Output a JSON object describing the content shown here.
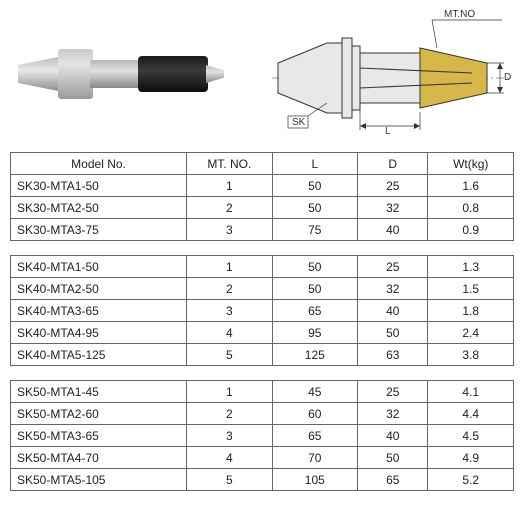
{
  "diagram": {
    "labels": {
      "mtno": "MT.NO",
      "sk": "SK",
      "L": "L",
      "D": "D"
    },
    "colors": {
      "outline": "#333333",
      "fill_section": "#d6b84a",
      "fill_body": "#e8e8e8"
    }
  },
  "headers": {
    "model": "Model No.",
    "mt": "MT. NO.",
    "l": "L",
    "d": "D",
    "wt": "Wt(kg)"
  },
  "groups": [
    {
      "rows": [
        {
          "model": "SK30-MTA1-50",
          "mt": "1",
          "l": "50",
          "d": "25",
          "wt": "1.6"
        },
        {
          "model": "SK30-MTA2-50",
          "mt": "2",
          "l": "50",
          "d": "32",
          "wt": "0.8"
        },
        {
          "model": "SK30-MTA3-75",
          "mt": "3",
          "l": "75",
          "d": "40",
          "wt": "0.9"
        }
      ]
    },
    {
      "rows": [
        {
          "model": "SK40-MTA1-50",
          "mt": "1",
          "l": "50",
          "d": "25",
          "wt": "1.3"
        },
        {
          "model": "SK40-MTA2-50",
          "mt": "2",
          "l": "50",
          "d": "32",
          "wt": "1.5"
        },
        {
          "model": "SK40-MTA3-65",
          "mt": "3",
          "l": "65",
          "d": "40",
          "wt": "1.8"
        },
        {
          "model": "SK40-MTA4-95",
          "mt": "4",
          "l": "95",
          "d": "50",
          "wt": "2.4"
        },
        {
          "model": "SK40-MTA5-125",
          "mt": "5",
          "l": "125",
          "d": "63",
          "wt": "3.8"
        }
      ]
    },
    {
      "rows": [
        {
          "model": "SK50-MTA1-45",
          "mt": "1",
          "l": "45",
          "d": "25",
          "wt": "4.1"
        },
        {
          "model": "SK50-MTA2-60",
          "mt": "2",
          "l": "60",
          "d": "32",
          "wt": "4.4"
        },
        {
          "model": "SK50-MTA3-65",
          "mt": "3",
          "l": "65",
          "d": "40",
          "wt": "4.5"
        },
        {
          "model": "SK50-MTA4-70",
          "mt": "4",
          "l": "70",
          "d": "50",
          "wt": "4.9"
        },
        {
          "model": "SK50-MTA5-105",
          "mt": "5",
          "l": "105",
          "d": "65",
          "wt": "5.2"
        }
      ]
    }
  ]
}
